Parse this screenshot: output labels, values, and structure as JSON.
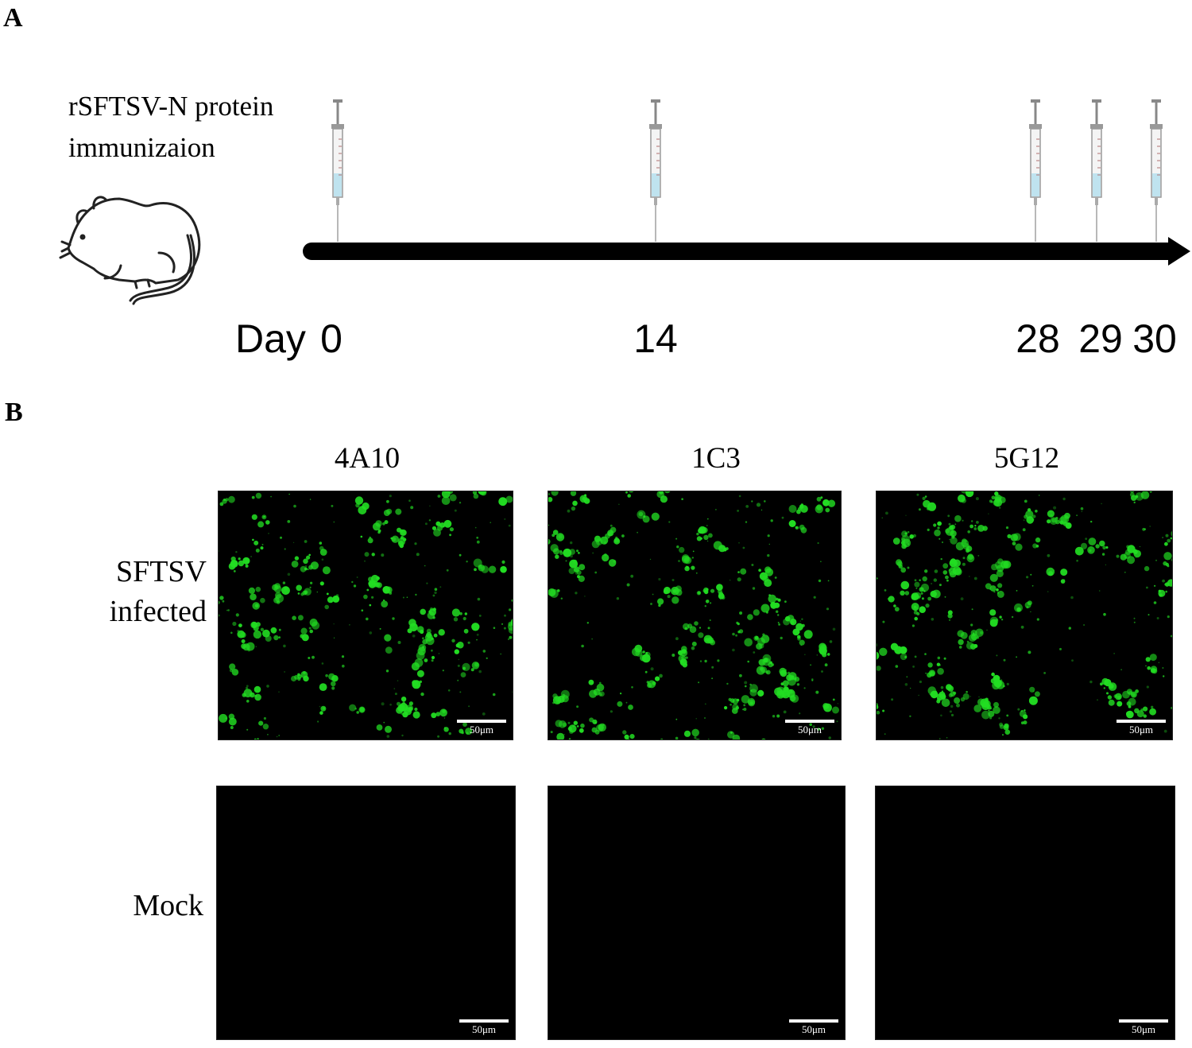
{
  "panel_a": {
    "letter": "A",
    "label_line1": "rSFTSV-N protein",
    "label_line2": "immunizaion",
    "day_word": "Day",
    "days": [
      "0",
      "14",
      "28",
      "29",
      "30"
    ]
  },
  "panel_b": {
    "letter": "B",
    "columns": [
      "4A10",
      "1C3",
      "5G12"
    ],
    "rows": [
      {
        "label_line1": "SFTSV",
        "label_line2": "infected"
      },
      {
        "label_line1": "Mock",
        "label_line2": ""
      }
    ],
    "scale_label": "50μm"
  },
  "colors": {
    "fluorescence": "#22dd22",
    "background": "#000000",
    "syringe_liquid": "#bfe3ef"
  }
}
